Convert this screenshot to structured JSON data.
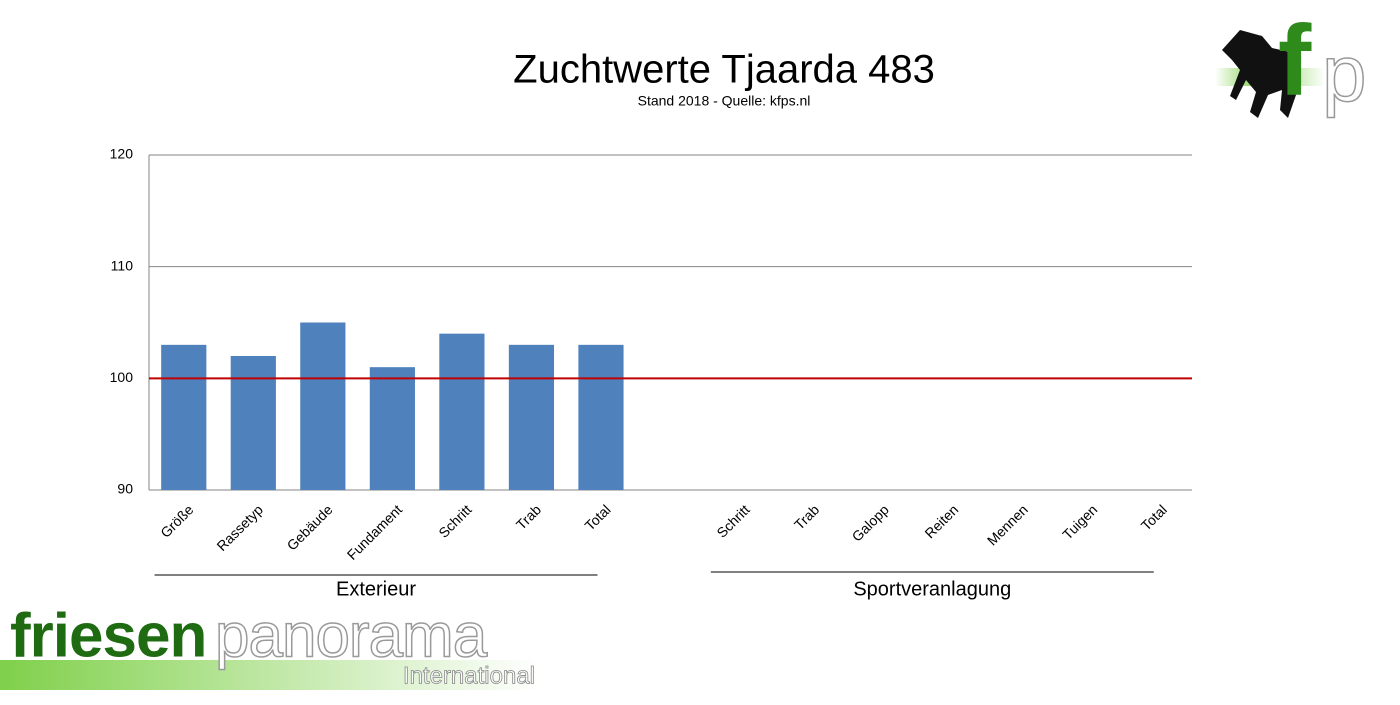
{
  "chart_data": {
    "type": "bar",
    "title": "Zuchtwerte Tjaarda 483",
    "subtitle": "Stand 2018 - Quelle: kfps.nl",
    "categories": [
      "Größe",
      "Rassetyp",
      "Gebäude",
      "Fundament",
      "Schritt",
      "Trab",
      "Total",
      null,
      "Schritt",
      "Trab",
      "Galopp",
      "Reiten",
      "Mennen",
      "Tuigen",
      "Total"
    ],
    "values": [
      103,
      102,
      105,
      101,
      104,
      103,
      103,
      null,
      null,
      null,
      null,
      null,
      null,
      null,
      null
    ],
    "color": "#4f81bd",
    "ylim": [
      90,
      120
    ],
    "yticks": [
      90,
      100,
      110,
      120
    ],
    "grid": true,
    "reference_line": {
      "value": 100,
      "color": "#c00000"
    },
    "groups": [
      {
        "label": "Exterieur",
        "start": 0,
        "end": 6
      },
      {
        "label": "Sportveranlagung",
        "start": 8,
        "end": 14
      }
    ]
  },
  "logos": {
    "brand_left": "friesen",
    "brand_right": "panorama",
    "brand_sub": "International",
    "corner": [
      "f",
      "p"
    ]
  }
}
